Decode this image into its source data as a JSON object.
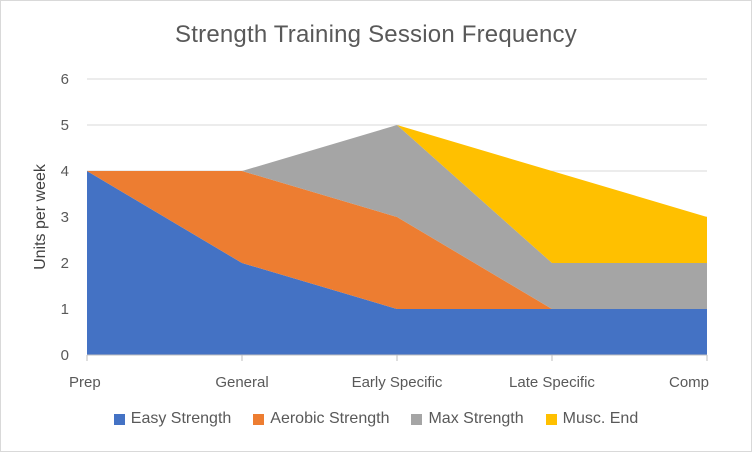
{
  "chart_data": {
    "type": "area",
    "title": "Strength Training Session Frequency",
    "xlabel": "",
    "ylabel": "Units per week",
    "categories": [
      "Prep",
      "General",
      "Early Specific",
      "Late Specific",
      "Comp"
    ],
    "ylim": [
      0,
      6
    ],
    "yticks": [
      0,
      1,
      2,
      3,
      4,
      5,
      6
    ],
    "grid": true,
    "stacked": true,
    "legend_position": "bottom",
    "series": [
      {
        "name": "Easy Strength",
        "color": "#4472C4",
        "values": [
          4,
          2,
          1,
          1,
          1
        ]
      },
      {
        "name": "Aerobic Strength",
        "color": "#ED7D31",
        "values": [
          0,
          2,
          2,
          0,
          0
        ]
      },
      {
        "name": "Max Strength",
        "color": "#A5A5A5",
        "values": [
          0,
          0,
          2,
          1,
          1
        ]
      },
      {
        "name": "Musc. End",
        "color": "#FFC000",
        "values": [
          0,
          0,
          0,
          2,
          1
        ]
      }
    ]
  }
}
